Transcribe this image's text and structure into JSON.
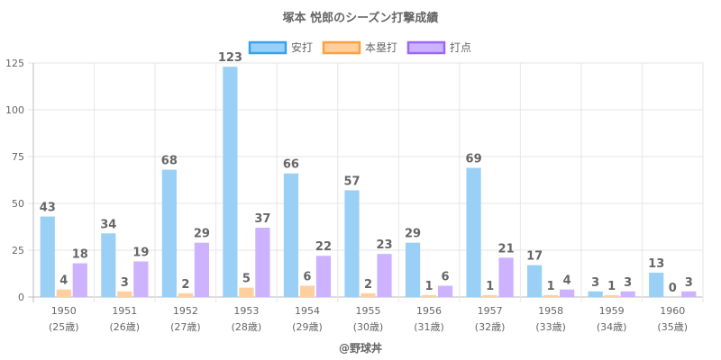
{
  "chart_data": {
    "type": "bar",
    "title": "塚本 悦郎のシーズン打撃成績",
    "categories": [
      "1950",
      "1951",
      "1952",
      "1953",
      "1954",
      "1955",
      "1956",
      "1957",
      "1958",
      "1959",
      "1960"
    ],
    "sublabels": [
      "(25歳)",
      "(26歳)",
      "(27歳)",
      "(28歳)",
      "(29歳)",
      "(30歳)",
      "(31歳)",
      "(32歳)",
      "(33歳)",
      "(34歳)",
      "(35歳)"
    ],
    "series": [
      {
        "name": "安打",
        "values": [
          43,
          34,
          68,
          123,
          66,
          57,
          29,
          69,
          17,
          3,
          13
        ],
        "fill": "#9ad0f5",
        "stroke": "#36a2eb"
      },
      {
        "name": "本塁打",
        "values": [
          4,
          3,
          2,
          5,
          6,
          2,
          1,
          1,
          1,
          1,
          0
        ],
        "fill": "#ffcf9f",
        "stroke": "#ff9f40"
      },
      {
        "name": "打点",
        "values": [
          18,
          19,
          29,
          37,
          22,
          23,
          6,
          21,
          4,
          3,
          3
        ],
        "fill": "#ccb2ff",
        "stroke": "#9966ff"
      }
    ],
    "ylim": [
      0,
      125
    ],
    "yticks": [
      0,
      25,
      50,
      75,
      100,
      125
    ],
    "legend_position": "top-center",
    "grid": true,
    "xlabel": "",
    "ylabel": ""
  },
  "footer": {
    "credit": "@野球丼"
  }
}
